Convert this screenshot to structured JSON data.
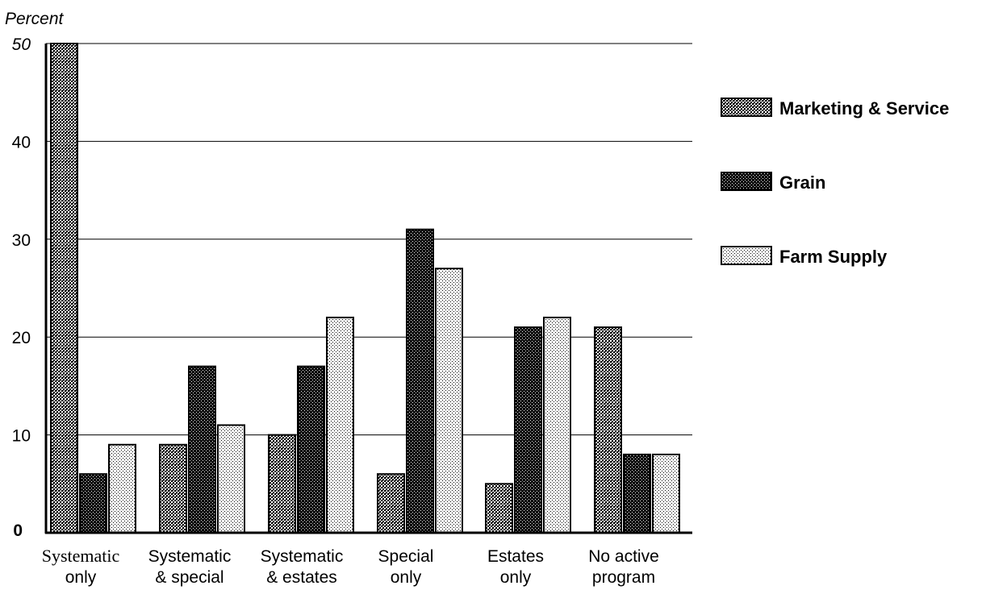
{
  "chart_data": {
    "type": "bar",
    "ylabel": "Percent",
    "title": "",
    "xlabel": "",
    "ylim": [
      0,
      50
    ],
    "yticks": [
      0,
      10,
      20,
      30,
      40,
      50
    ],
    "grid": true,
    "legend_position": "right",
    "categories": [
      [
        "Systematic",
        "only"
      ],
      [
        "Systematic",
        "& special"
      ],
      [
        "Systematic",
        "& estates"
      ],
      [
        "Special",
        "only"
      ],
      [
        "Estates",
        "only"
      ],
      [
        "No active",
        "program"
      ]
    ],
    "series": [
      {
        "name": "Marketing & Service",
        "pattern": "medium-dots",
        "values": [
          50,
          9,
          10,
          6,
          5,
          21
        ]
      },
      {
        "name": "Grain",
        "pattern": "dark-crosshatch",
        "values": [
          6,
          17,
          17,
          31,
          21,
          8
        ]
      },
      {
        "name": "Farm Supply",
        "pattern": "light-dots",
        "values": [
          9,
          11,
          22,
          27,
          22,
          8
        ]
      }
    ]
  }
}
